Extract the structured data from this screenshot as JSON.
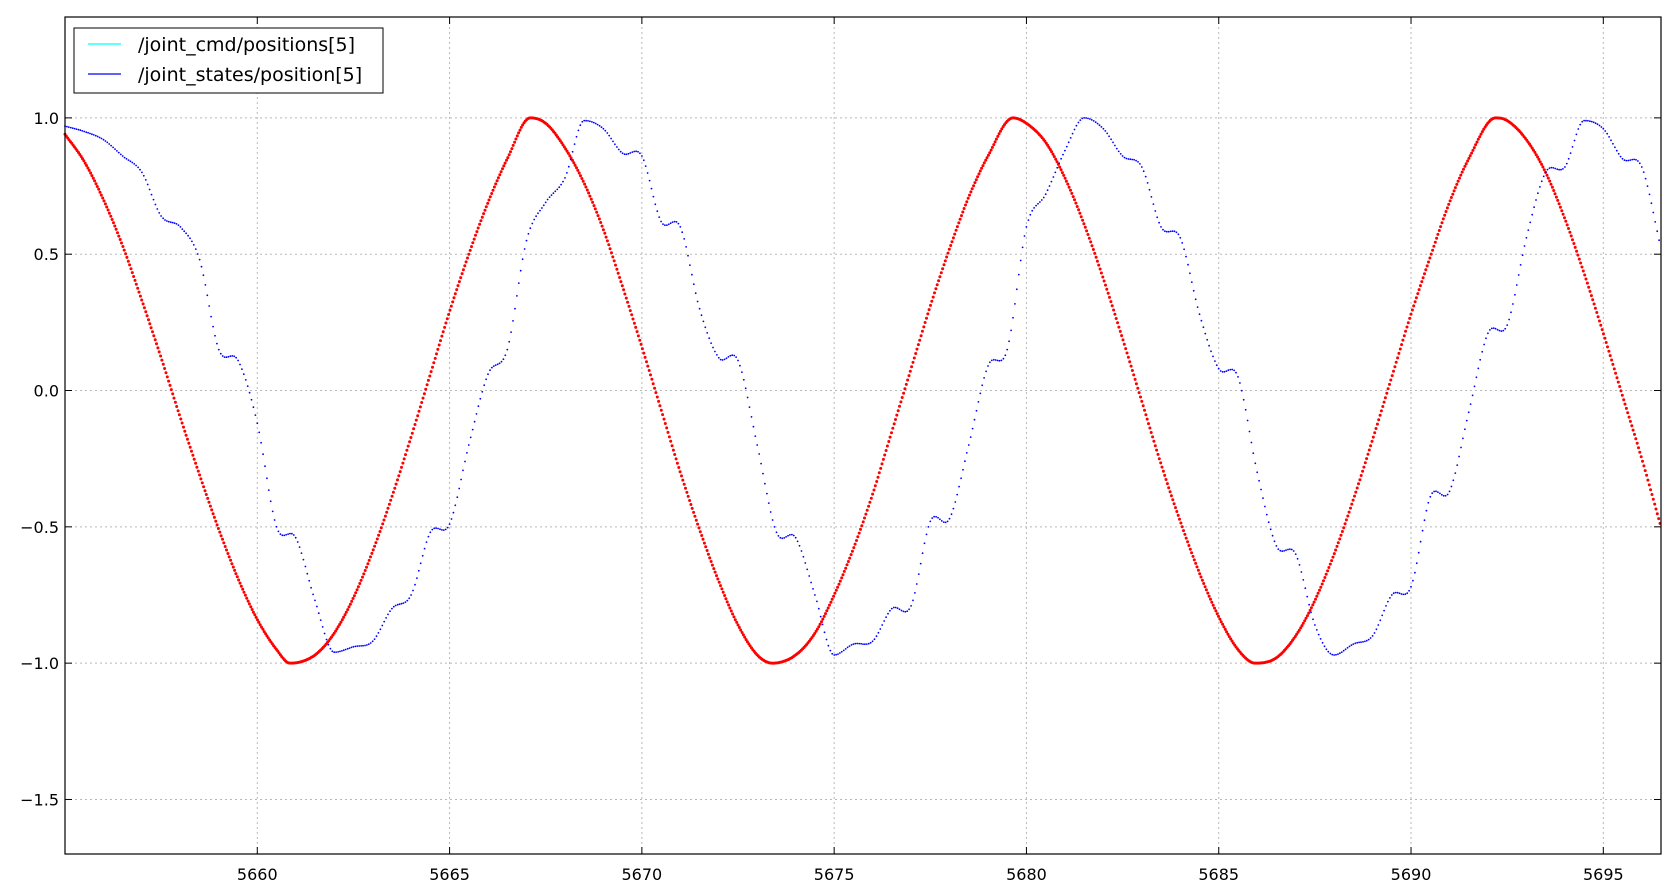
{
  "chart_data": {
    "type": "scatter",
    "title": "",
    "xlabel": "",
    "ylabel": "",
    "xlim": [
      5655.0,
      5696.5
    ],
    "ylim": [
      -1.7,
      1.37
    ],
    "xticks": [
      5660,
      5665,
      5670,
      5675,
      5680,
      5685,
      5690,
      5695
    ],
    "xtick_labels": [
      "5660",
      "5665",
      "5670",
      "5675",
      "5680",
      "5685",
      "5690",
      "5695"
    ],
    "yticks": [
      -1.5,
      -1.0,
      -0.5,
      0.0,
      0.5,
      1.0
    ],
    "ytick_labels": [
      "−1.5",
      "−1.0",
      "−0.5",
      "0.0",
      "0.5",
      "1.0"
    ],
    "grid": true,
    "legend_placement": "top-left",
    "series": [
      {
        "name": "/joint_cmd/positions[5]",
        "legend_color": "#00ffff",
        "plot_color": "#ff0000",
        "marker": "dot",
        "x": [
          5655.0,
          5655.5,
          5656.0,
          5656.5,
          5657.0,
          5657.5,
          5658.0,
          5658.5,
          5659.0,
          5659.5,
          5660.0,
          5660.5,
          5660.85,
          5661.5,
          5662.0,
          5662.5,
          5663.0,
          5663.5,
          5664.0,
          5664.5,
          5665.0,
          5665.5,
          5666.0,
          5666.5,
          5667.1,
          5667.5,
          5668.0,
          5668.5,
          5669.0,
          5669.5,
          5670.0,
          5670.5,
          5671.0,
          5671.5,
          5672.0,
          5672.5,
          5673.0,
          5673.4,
          5674.0,
          5674.5,
          5675.0,
          5675.5,
          5676.0,
          5676.5,
          5677.0,
          5677.5,
          5678.0,
          5678.5,
          5679.0,
          5679.65,
          5680.0,
          5680.5,
          5681.0,
          5681.5,
          5682.0,
          5682.5,
          5683.0,
          5683.5,
          5684.0,
          5684.5,
          5685.0,
          5685.5,
          5685.95,
          5686.5,
          5687.0,
          5687.5,
          5688.0,
          5688.5,
          5689.0,
          5689.5,
          5690.0,
          5690.5,
          5691.0,
          5691.5,
          5692.2,
          5692.5,
          5693.0,
          5693.5,
          5694.0,
          5694.5,
          5695.0,
          5695.5,
          5696.0,
          5696.5
        ],
        "y": [
          0.94,
          0.84,
          0.7,
          0.53,
          0.33,
          0.12,
          -0.1,
          -0.31,
          -0.51,
          -0.69,
          -0.84,
          -0.95,
          -1.0,
          -0.97,
          -0.89,
          -0.76,
          -0.59,
          -0.39,
          -0.17,
          0.06,
          0.29,
          0.5,
          0.69,
          0.85,
          1.0,
          0.98,
          0.89,
          0.76,
          0.59,
          0.38,
          0.16,
          -0.07,
          -0.3,
          -0.51,
          -0.7,
          -0.86,
          -0.97,
          -1.0,
          -0.97,
          -0.89,
          -0.75,
          -0.58,
          -0.38,
          -0.15,
          0.08,
          0.31,
          0.52,
          0.71,
          0.86,
          1.0,
          0.98,
          0.91,
          0.78,
          0.61,
          0.41,
          0.19,
          -0.04,
          -0.27,
          -0.48,
          -0.67,
          -0.83,
          -0.95,
          -1.0,
          -0.98,
          -0.9,
          -0.77,
          -0.6,
          -0.4,
          -0.18,
          0.05,
          0.28,
          0.49,
          0.69,
          0.85,
          1.0,
          0.99,
          0.92,
          0.8,
          0.63,
          0.43,
          0.21,
          -0.02,
          -0.25,
          -0.5
        ]
      },
      {
        "name": "/joint_states/position[5]",
        "legend_color": "#0000ff",
        "plot_color": "#0000ff",
        "marker": "dot",
        "x": [
          5655.0,
          5655.5,
          5656.0,
          5656.5,
          5657.0,
          5657.5,
          5658.0,
          5658.5,
          5659.0,
          5659.5,
          5660.0,
          5660.5,
          5661.0,
          5661.5,
          5662.0,
          5662.5,
          5663.0,
          5663.5,
          5664.0,
          5664.5,
          5665.0,
          5665.5,
          5666.0,
          5666.5,
          5667.0,
          5667.5,
          5668.0,
          5668.5,
          5669.0,
          5669.5,
          5670.0,
          5670.5,
          5671.0,
          5671.5,
          5672.0,
          5672.5,
          5673.0,
          5673.5,
          5674.0,
          5674.5,
          5675.0,
          5675.5,
          5676.0,
          5676.5,
          5677.0,
          5677.5,
          5678.0,
          5678.5,
          5679.0,
          5679.5,
          5680.0,
          5680.5,
          5681.0,
          5681.5,
          5682.0,
          5682.5,
          5683.0,
          5683.5,
          5684.0,
          5684.5,
          5685.0,
          5685.5,
          5686.0,
          5686.5,
          5687.0,
          5687.5,
          5688.0,
          5688.5,
          5689.0,
          5689.5,
          5690.0,
          5690.5,
          5691.0,
          5691.5,
          5692.0,
          5692.5,
          5693.0,
          5693.5,
          5694.0,
          5694.5,
          5695.0,
          5695.5,
          5696.0,
          5696.5
        ],
        "y": [
          0.97,
          0.95,
          0.92,
          0.86,
          0.8,
          0.64,
          0.6,
          0.48,
          0.15,
          0.11,
          -0.12,
          -0.5,
          -0.54,
          -0.77,
          -0.96,
          -0.94,
          -0.92,
          -0.8,
          -0.75,
          -0.52,
          -0.49,
          -0.2,
          0.06,
          0.15,
          0.55,
          0.69,
          0.78,
          0.99,
          0.96,
          0.87,
          0.86,
          0.62,
          0.6,
          0.3,
          0.12,
          0.11,
          -0.2,
          -0.52,
          -0.54,
          -0.75,
          -0.97,
          -0.93,
          -0.92,
          -0.8,
          -0.79,
          -0.48,
          -0.47,
          -0.2,
          0.09,
          0.15,
          0.6,
          0.72,
          0.88,
          1.0,
          0.96,
          0.86,
          0.82,
          0.6,
          0.56,
          0.28,
          0.08,
          0.05,
          -0.3,
          -0.57,
          -0.6,
          -0.86,
          -0.97,
          -0.93,
          -0.9,
          -0.75,
          -0.72,
          -0.39,
          -0.37,
          -0.08,
          0.21,
          0.24,
          0.56,
          0.8,
          0.82,
          0.99,
          0.96,
          0.85,
          0.82,
          0.52
        ]
      }
    ]
  }
}
